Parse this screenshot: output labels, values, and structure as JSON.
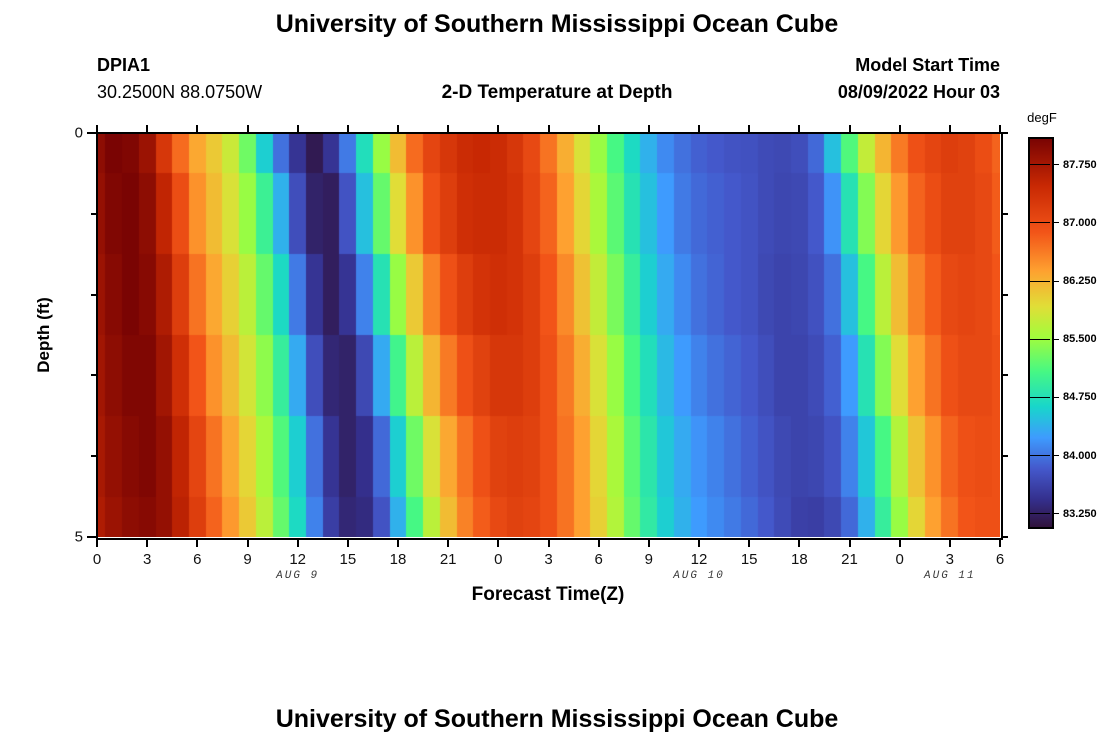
{
  "page": {
    "main_title": "University of Southern Mississippi Ocean Cube",
    "next_plot_title": "University of Southern Mississippi Ocean Cube"
  },
  "header": {
    "station_id": "DPIA1",
    "station_coords": "30.2500N  88.0750W",
    "plot_subtitle": "2-D Temperature at Depth",
    "model_start_label": "Model Start Time",
    "model_start_value": "08/09/2022 Hour 03"
  },
  "chart_data": {
    "type": "heatmap",
    "title": "2-D Temperature at Depth",
    "xlabel": "Forecast Time(Z)",
    "ylabel": "Depth (ft)",
    "units_label": "degF",
    "grid": false,
    "x_start_hour": 0,
    "x_end_hour": 54,
    "x_step_hours": 1,
    "x_tick_hours": [
      0,
      3,
      6,
      9,
      12,
      15,
      18,
      21,
      24,
      27,
      30,
      33,
      36,
      39,
      42,
      45,
      48,
      51,
      54
    ],
    "x_tick_labels": [
      "0",
      "3",
      "6",
      "9",
      "12",
      "15",
      "18",
      "21",
      "0",
      "3",
      "6",
      "9",
      "12",
      "15",
      "18",
      "21",
      "0",
      "3",
      "6"
    ],
    "x_date_annotations": [
      {
        "label": "AUG 9",
        "hour": 12
      },
      {
        "label": "AUG 10",
        "hour": 36
      },
      {
        "label": "AUG 11",
        "hour": 51
      }
    ],
    "y_depths_ft": [
      0,
      1,
      2,
      3,
      4,
      5
    ],
    "y_tick_major": [
      {
        "value": 0,
        "label": "0"
      },
      {
        "value": 5,
        "label": "5"
      }
    ],
    "y_tick_minor": [
      1,
      2,
      3,
      4
    ],
    "ylim": [
      0,
      5
    ],
    "colorbar": {
      "min": 83.1,
      "max": 88.1,
      "tick_labels": [
        "87.750",
        "87.000",
        "86.250",
        "85.500",
        "84.750",
        "84.000",
        "83.250"
      ],
      "tick_values": [
        87.75,
        87.0,
        86.25,
        85.5,
        84.75,
        84.0,
        83.25
      ],
      "position": "right"
    },
    "colormap_stops": [
      {
        "pos": 0.0,
        "color": "#30123b"
      },
      {
        "pos": 0.07,
        "color": "#342f8c"
      },
      {
        "pos": 0.15,
        "color": "#4458cb"
      },
      {
        "pos": 0.23,
        "color": "#3e9bfe"
      },
      {
        "pos": 0.31,
        "color": "#18d6cb"
      },
      {
        "pos": 0.4,
        "color": "#46f884"
      },
      {
        "pos": 0.49,
        "color": "#a2fc3c"
      },
      {
        "pos": 0.57,
        "color": "#e1dd37"
      },
      {
        "pos": 0.66,
        "color": "#fea130"
      },
      {
        "pos": 0.76,
        "color": "#f25418"
      },
      {
        "pos": 0.88,
        "color": "#c82803"
      },
      {
        "pos": 1.0,
        "color": "#7a0403"
      }
    ],
    "series": [
      {
        "name": "0 ft",
        "depth_ft": 0,
        "values": [
          87.95,
          88.1,
          88.05,
          87.85,
          87.3,
          86.75,
          86.35,
          86.1,
          85.8,
          85.3,
          84.6,
          84.0,
          83.5,
          83.2,
          83.5,
          84.05,
          84.75,
          85.5,
          86.2,
          86.75,
          87.1,
          87.3,
          87.45,
          87.5,
          87.45,
          87.3,
          87.05,
          86.7,
          86.3,
          85.9,
          85.5,
          85.1,
          84.7,
          84.4,
          84.15,
          84.0,
          83.9,
          83.85,
          83.8,
          83.78,
          83.72,
          83.7,
          83.75,
          83.95,
          84.5,
          85.15,
          85.75,
          86.25,
          86.65,
          86.95,
          87.1,
          87.2,
          87.15,
          87.0,
          86.8
        ]
      },
      {
        "name": "1 ft",
        "depth_ft": 1,
        "values": [
          87.9,
          88.05,
          88.1,
          87.95,
          87.55,
          87.0,
          86.5,
          86.2,
          85.9,
          85.5,
          85.0,
          84.4,
          83.75,
          83.3,
          83.25,
          83.8,
          84.5,
          85.25,
          85.95,
          86.5,
          86.95,
          87.2,
          87.4,
          87.45,
          87.45,
          87.35,
          87.1,
          86.8,
          86.4,
          86.0,
          85.6,
          85.2,
          84.8,
          84.5,
          84.25,
          84.05,
          83.95,
          83.9,
          83.85,
          83.8,
          83.72,
          83.68,
          83.7,
          83.85,
          84.2,
          84.8,
          85.4,
          86.0,
          86.45,
          86.8,
          87.0,
          87.15,
          87.15,
          87.05,
          86.85
        ]
      },
      {
        "name": "2 ft",
        "depth_ft": 2,
        "values": [
          87.85,
          88.0,
          88.1,
          88.0,
          87.7,
          87.2,
          86.7,
          86.35,
          86.05,
          85.7,
          85.25,
          84.7,
          84.05,
          83.5,
          83.25,
          83.5,
          84.1,
          84.8,
          85.5,
          86.1,
          86.6,
          86.95,
          87.2,
          87.35,
          87.4,
          87.35,
          87.2,
          86.9,
          86.55,
          86.15,
          85.75,
          85.35,
          84.95,
          84.6,
          84.35,
          84.15,
          84.0,
          83.92,
          83.85,
          83.8,
          83.7,
          83.65,
          83.68,
          83.78,
          84.0,
          84.5,
          85.1,
          85.7,
          86.2,
          86.6,
          86.85,
          87.05,
          87.1,
          87.05,
          86.9
        ]
      },
      {
        "name": "3 ft",
        "depth_ft": 3,
        "values": [
          87.8,
          87.95,
          88.05,
          88.05,
          87.8,
          87.4,
          86.9,
          86.5,
          86.2,
          85.85,
          85.45,
          84.95,
          84.35,
          83.75,
          83.35,
          83.3,
          83.7,
          84.35,
          85.05,
          85.7,
          86.25,
          86.65,
          86.95,
          87.15,
          87.3,
          87.3,
          87.2,
          86.95,
          86.65,
          86.3,
          85.9,
          85.5,
          85.1,
          84.75,
          84.45,
          84.25,
          84.1,
          84.0,
          83.92,
          83.85,
          83.75,
          83.65,
          83.65,
          83.72,
          83.9,
          84.25,
          84.8,
          85.4,
          85.95,
          86.4,
          86.7,
          86.95,
          87.05,
          87.05,
          86.95
        ]
      },
      {
        "name": "4 ft",
        "depth_ft": 4,
        "values": [
          87.75,
          87.9,
          88.0,
          88.05,
          87.9,
          87.55,
          87.1,
          86.7,
          86.35,
          86.0,
          85.6,
          85.15,
          84.6,
          84.0,
          83.5,
          83.3,
          83.45,
          83.95,
          84.6,
          85.3,
          85.9,
          86.35,
          86.7,
          86.95,
          87.15,
          87.2,
          87.15,
          86.95,
          86.7,
          86.4,
          86.0,
          85.6,
          85.2,
          84.85,
          84.55,
          84.35,
          84.2,
          84.1,
          84.0,
          83.9,
          83.8,
          83.7,
          83.65,
          83.68,
          83.8,
          84.1,
          84.55,
          85.1,
          85.65,
          86.15,
          86.5,
          86.8,
          86.95,
          87.0,
          86.95
        ]
      },
      {
        "name": "5 ft",
        "depth_ft": 5,
        "values": [
          87.7,
          87.85,
          87.95,
          88.0,
          87.9,
          87.6,
          87.2,
          86.8,
          86.45,
          86.1,
          85.7,
          85.25,
          84.7,
          84.1,
          83.6,
          83.35,
          83.4,
          83.8,
          84.4,
          85.1,
          85.7,
          86.2,
          86.6,
          86.85,
          87.05,
          87.15,
          87.1,
          86.95,
          86.7,
          86.4,
          86.05,
          85.65,
          85.25,
          84.9,
          84.6,
          84.4,
          84.25,
          84.15,
          84.05,
          83.95,
          83.85,
          83.72,
          83.62,
          83.6,
          83.7,
          83.95,
          84.4,
          84.95,
          85.5,
          86.0,
          86.4,
          86.7,
          86.9,
          86.95,
          86.95
        ]
      }
    ]
  }
}
